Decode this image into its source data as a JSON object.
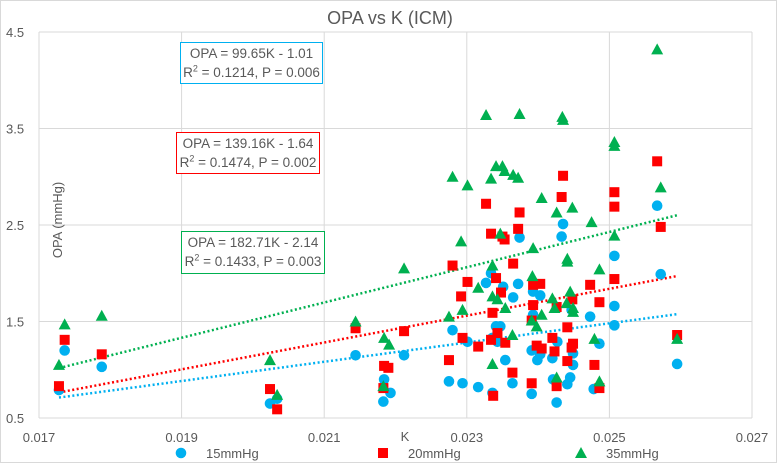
{
  "chart_data": {
    "type": "scatter",
    "title": "OPA vs K (ICM)",
    "xlabel": "K",
    "ylabel": "OPA (mmHg)",
    "xlim": [
      0.017,
      0.027
    ],
    "ylim": [
      0.5,
      4.5
    ],
    "xticks": [
      "0.017",
      "0.019",
      "0.021",
      "0.023",
      "0.025",
      "0.027"
    ],
    "yticks": [
      "0.5",
      "1.5",
      "2.5",
      "3.5",
      "4.5"
    ],
    "xtick_values": [
      0.017,
      0.019,
      0.021,
      0.023,
      0.025,
      0.027
    ],
    "ytick_values": [
      0.5,
      1.5,
      2.5,
      3.5,
      4.5
    ],
    "grid": true,
    "legend_position": "bottom",
    "series": [
      {
        "name": "15mmHg",
        "color": "#00b0f0",
        "marker": "circle",
        "trendline": {
          "slope": 99.65,
          "intercept": -1.01,
          "x_range": [
            0.01728,
            0.02595
          ],
          "style": "dotted"
        },
        "annotation": {
          "line1": "OPA = 99.65K - 1.01",
          "r2_label": "R",
          "line2": " = 0.1214, P = 0.006"
        },
        "points": [
          [
            0.01728,
            0.79
          ],
          [
            0.01736,
            1.2
          ],
          [
            0.01788,
            1.03
          ],
          [
            0.02024,
            0.65
          ],
          [
            0.02034,
            0.7
          ],
          [
            0.02144,
            1.15
          ],
          [
            0.02183,
            0.67
          ],
          [
            0.02184,
            0.9
          ],
          [
            0.02193,
            0.76
          ],
          [
            0.02212,
            1.15
          ],
          [
            0.02334,
            2.0
          ],
          [
            0.02327,
            1.9
          ],
          [
            0.02351,
            1.86
          ],
          [
            0.02372,
            1.89
          ],
          [
            0.02365,
            1.75
          ],
          [
            0.02393,
            1.81
          ],
          [
            0.02403,
            1.77
          ],
          [
            0.02393,
            1.57
          ],
          [
            0.02341,
            1.45
          ],
          [
            0.02347,
            1.45
          ],
          [
            0.0228,
            1.41
          ],
          [
            0.02301,
            1.29
          ],
          [
            0.02336,
            1.33
          ],
          [
            0.02343,
            1.29
          ],
          [
            0.02391,
            1.2
          ],
          [
            0.02403,
            1.16
          ],
          [
            0.02427,
            1.29
          ],
          [
            0.02449,
            1.17
          ],
          [
            0.02354,
            1.1
          ],
          [
            0.02399,
            1.1
          ],
          [
            0.0242,
            1.12
          ],
          [
            0.02449,
            1.05
          ],
          [
            0.02275,
            0.88
          ],
          [
            0.02294,
            0.86
          ],
          [
            0.02316,
            0.82
          ],
          [
            0.02336,
            0.76
          ],
          [
            0.02364,
            0.86
          ],
          [
            0.02391,
            0.75
          ],
          [
            0.02421,
            0.9
          ],
          [
            0.02445,
            0.92
          ],
          [
            0.02441,
            0.85
          ],
          [
            0.02426,
            0.66
          ],
          [
            0.02478,
            0.8
          ],
          [
            0.02473,
            1.55
          ],
          [
            0.02486,
            1.27
          ],
          [
            0.02447,
            1.62
          ],
          [
            0.02507,
            1.66
          ],
          [
            0.02507,
            1.46
          ],
          [
            0.02572,
            1.99
          ],
          [
            0.02595,
            1.06
          ],
          [
            0.02567,
            2.7
          ],
          [
            0.02435,
            2.51
          ],
          [
            0.02374,
            2.37
          ],
          [
            0.02433,
            2.38
          ],
          [
            0.02507,
            2.18
          ]
        ]
      },
      {
        "name": "20mmHg",
        "color": "#ff0000",
        "marker": "square",
        "trendline": {
          "slope": 139.16,
          "intercept": -1.64,
          "x_range": [
            0.01728,
            0.02595
          ],
          "style": "dotted"
        },
        "annotation": {
          "line1": "OPA = 139.16K - 1.64",
          "r2_label": "R",
          "line2": " = 0.1474, P = 0.002"
        },
        "points": [
          [
            0.01728,
            0.83
          ],
          [
            0.01736,
            1.31
          ],
          [
            0.01788,
            1.16
          ],
          [
            0.02024,
            0.8
          ],
          [
            0.02034,
            0.59
          ],
          [
            0.02144,
            1.43
          ],
          [
            0.02183,
            0.81
          ],
          [
            0.02184,
            1.04
          ],
          [
            0.0219,
            1.02
          ],
          [
            0.02212,
            1.4
          ],
          [
            0.0228,
            2.08
          ],
          [
            0.02365,
            2.1
          ],
          [
            0.02341,
            1.95
          ],
          [
            0.02301,
            1.91
          ],
          [
            0.02393,
            1.88
          ],
          [
            0.02403,
            1.89
          ],
          [
            0.02348,
            1.8
          ],
          [
            0.02292,
            1.76
          ],
          [
            0.02473,
            1.88
          ],
          [
            0.02507,
            1.94
          ],
          [
            0.02486,
            1.7
          ],
          [
            0.02393,
            1.67
          ],
          [
            0.02426,
            1.65
          ],
          [
            0.02448,
            1.73
          ],
          [
            0.02336,
            1.59
          ],
          [
            0.02391,
            1.51
          ],
          [
            0.02441,
            1.44
          ],
          [
            0.02343,
            1.38
          ],
          [
            0.02294,
            1.33
          ],
          [
            0.02316,
            1.24
          ],
          [
            0.02334,
            1.31
          ],
          [
            0.02354,
            1.28
          ],
          [
            0.0242,
            1.33
          ],
          [
            0.02398,
            1.25
          ],
          [
            0.02405,
            1.22
          ],
          [
            0.02423,
            1.19
          ],
          [
            0.02449,
            1.27
          ],
          [
            0.02447,
            1.23
          ],
          [
            0.02441,
            1.09
          ],
          [
            0.02479,
            1.05
          ],
          [
            0.02275,
            1.1
          ],
          [
            0.02364,
            0.97
          ],
          [
            0.02391,
            0.86
          ],
          [
            0.02426,
            0.83
          ],
          [
            0.02486,
            0.81
          ],
          [
            0.02337,
            0.73
          ],
          [
            0.02595,
            1.36
          ],
          [
            0.02567,
            3.16
          ],
          [
            0.02435,
            3.01
          ],
          [
            0.02507,
            2.84
          ],
          [
            0.02507,
            2.69
          ],
          [
            0.02327,
            2.72
          ],
          [
            0.02433,
            2.79
          ],
          [
            0.02374,
            2.63
          ],
          [
            0.02372,
            2.46
          ],
          [
            0.02334,
            2.41
          ],
          [
            0.0235,
            2.38
          ],
          [
            0.02353,
            2.35
          ],
          [
            0.02572,
            2.48
          ]
        ]
      },
      {
        "name": "35mmHg",
        "color": "#00b050",
        "marker": "triangle",
        "trendline": {
          "slope": 182.71,
          "intercept": -2.14,
          "x_range": [
            0.01728,
            0.02595
          ],
          "style": "dotted"
        },
        "annotation": {
          "line1": "OPA = 182.71K - 2.14",
          "r2_label": "R",
          "line2": " = 0.1433, P = 0.003"
        },
        "points": [
          [
            0.01728,
            1.05
          ],
          [
            0.01736,
            1.47
          ],
          [
            0.01788,
            1.56
          ],
          [
            0.02024,
            1.1
          ],
          [
            0.02034,
            0.74
          ],
          [
            0.02144,
            1.5
          ],
          [
            0.02184,
            1.33
          ],
          [
            0.02183,
            0.83
          ],
          [
            0.02191,
            1.26
          ],
          [
            0.02212,
            2.05
          ],
          [
            0.02327,
            3.64
          ],
          [
            0.02374,
            3.65
          ],
          [
            0.02434,
            3.62
          ],
          [
            0.02435,
            3.59
          ],
          [
            0.02507,
            3.36
          ],
          [
            0.02507,
            3.32
          ],
          [
            0.0228,
            3.0
          ],
          [
            0.02301,
            2.91
          ],
          [
            0.02341,
            3.11
          ],
          [
            0.0235,
            3.11
          ],
          [
            0.02353,
            3.06
          ],
          [
            0.02365,
            3.02
          ],
          [
            0.02372,
            2.99
          ],
          [
            0.02334,
            2.98
          ],
          [
            0.02572,
            2.89
          ],
          [
            0.02405,
            2.78
          ],
          [
            0.02426,
            2.63
          ],
          [
            0.02448,
            2.68
          ],
          [
            0.02475,
            2.53
          ],
          [
            0.02292,
            2.33
          ],
          [
            0.02347,
            2.41
          ],
          [
            0.02393,
            2.26
          ],
          [
            0.02507,
            2.39
          ],
          [
            0.02441,
            2.15
          ],
          [
            0.02567,
            4.32
          ],
          [
            0.02336,
            2.08
          ],
          [
            0.02441,
            2.12
          ],
          [
            0.02486,
            2.04
          ],
          [
            0.02392,
            1.97
          ],
          [
            0.02316,
            1.85
          ],
          [
            0.02336,
            1.76
          ],
          [
            0.02343,
            1.73
          ],
          [
            0.02354,
            1.64
          ],
          [
            0.0242,
            1.74
          ],
          [
            0.02445,
            1.81
          ],
          [
            0.0244,
            1.69
          ],
          [
            0.02423,
            1.64
          ],
          [
            0.02449,
            1.64
          ],
          [
            0.02449,
            1.6
          ],
          [
            0.02405,
            1.57
          ],
          [
            0.02294,
            1.62
          ],
          [
            0.02275,
            1.55
          ],
          [
            0.02391,
            1.51
          ],
          [
            0.02398,
            1.45
          ],
          [
            0.02364,
            1.36
          ],
          [
            0.02479,
            1.32
          ],
          [
            0.02336,
            1.06
          ],
          [
            0.02426,
            0.92
          ],
          [
            0.02486,
            0.88
          ],
          [
            0.02595,
            1.32
          ]
        ]
      }
    ]
  }
}
